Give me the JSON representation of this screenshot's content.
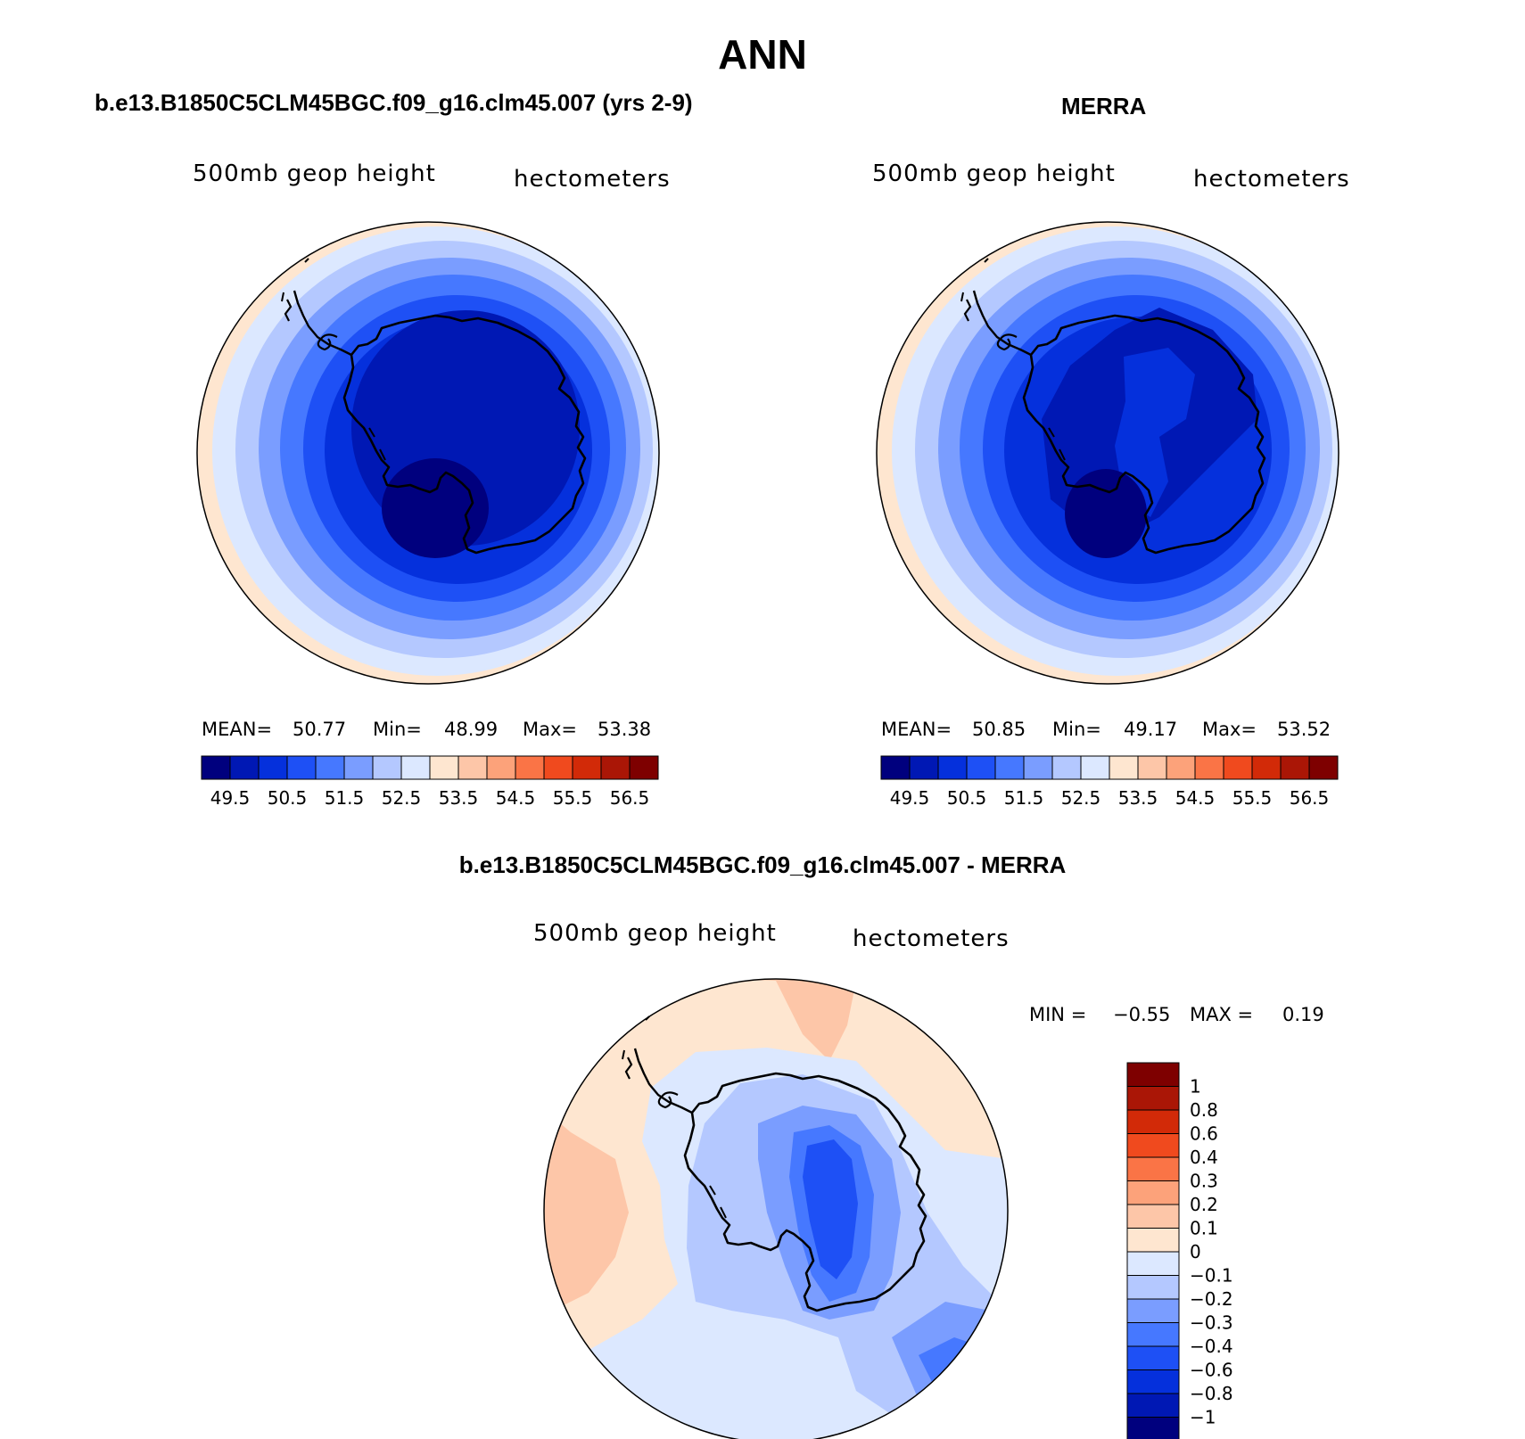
{
  "figure_title": "ANN",
  "panels": [
    {
      "title": "b.e13.B1850C5CLM45BGC.f09_g16.clm45.007 (yrs 2-9)",
      "variable": "500mb geop height",
      "units": "hectometers",
      "stats": {
        "mean_label": "MEAN=",
        "mean": "50.77",
        "min_label": "Min=",
        "min": "48.99",
        "max_label": "Max=",
        "max": "53.38"
      }
    },
    {
      "title": "MERRA",
      "variable": "500mb geop height",
      "units": "hectometers",
      "stats": {
        "mean_label": "MEAN=",
        "mean": "50.85",
        "min_label": "Min=",
        "min": "49.17",
        "max_label": "Max=",
        "max": "53.52"
      }
    },
    {
      "title": "b.e13.B1850C5CLM45BGC.f09_g16.clm45.007 - MERRA",
      "variable": "500mb geop height",
      "units": "hectometers",
      "stats": {
        "min_label": "MIN =",
        "min": "−0.55",
        "max_label": "MAX =",
        "max": "0.19"
      }
    }
  ],
  "colorbar_abs": {
    "labels": [
      "49.5",
      "50.5",
      "51.5",
      "52.5",
      "53.5",
      "54.5",
      "55.5",
      "56.5"
    ],
    "colors": [
      "#00007e",
      "#0018b4",
      "#0530dc",
      "#1e50f5",
      "#4678ff",
      "#7a9dff",
      "#b4c8ff",
      "#dce8ff",
      "#fee6d0",
      "#fdc6a8",
      "#fca27a",
      "#fa7446",
      "#f04a1e",
      "#d22a08",
      "#aa1606",
      "#7e0000"
    ]
  },
  "colorbar_diff": {
    "labels": [
      "1",
      "0.8",
      "0.6",
      "0.4",
      "0.3",
      "0.2",
      "0.1",
      "0",
      "−0.1",
      "−0.2",
      "−0.3",
      "−0.4",
      "−0.6",
      "−0.8",
      "−1"
    ],
    "colors": [
      "#7e0000",
      "#aa1606",
      "#d22a08",
      "#f04a1e",
      "#fa7446",
      "#fca27a",
      "#fdc6a8",
      "#fee6d0",
      "#dce8ff",
      "#b4c8ff",
      "#7a9dff",
      "#4678ff",
      "#1e50f5",
      "#0530dc",
      "#0018b4",
      "#00007e"
    ]
  },
  "chart_data": [
    {
      "type": "heatmap",
      "title": "b.e13.B1850C5CLM45BGC.f09_g16.clm45.007 (yrs 2-9)",
      "variable": "500mb geop height",
      "units": "hectometers",
      "projection": "south polar stereographic",
      "mean": 50.77,
      "min": 48.99,
      "max": 53.38,
      "levels": [
        49.5,
        50.5,
        51.5,
        52.5,
        53.5,
        54.5,
        55.5,
        56.5
      ]
    },
    {
      "type": "heatmap",
      "title": "MERRA",
      "variable": "500mb geop height",
      "units": "hectometers",
      "projection": "south polar stereographic",
      "mean": 50.85,
      "min": 49.17,
      "max": 53.52,
      "levels": [
        49.5,
        50.5,
        51.5,
        52.5,
        53.5,
        54.5,
        55.5,
        56.5
      ]
    },
    {
      "type": "heatmap",
      "title": "b.e13.B1850C5CLM45BGC.f09_g16.clm45.007 - MERRA",
      "variable": "500mb geop height",
      "units": "hectometers",
      "projection": "south polar stereographic",
      "min": -0.55,
      "max": 0.19,
      "levels": [
        -1,
        -0.8,
        -0.6,
        -0.4,
        -0.3,
        -0.2,
        -0.1,
        0,
        0.1,
        0.2,
        0.3,
        0.4,
        0.6,
        0.8,
        1
      ]
    }
  ]
}
